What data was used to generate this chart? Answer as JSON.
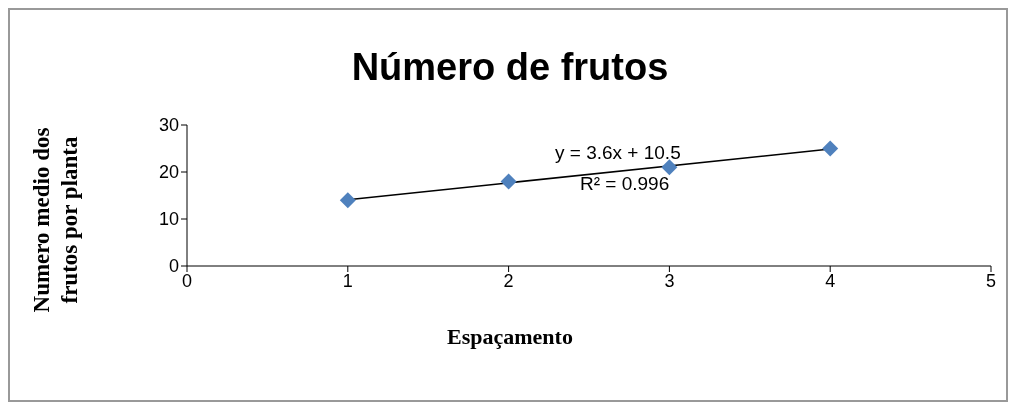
{
  "chart_data": {
    "type": "scatter",
    "title": "Número de frutos",
    "xlabel": "Espaçamento",
    "ylabel": "Numero medio dos frutos por planta",
    "x": [
      1,
      2,
      3,
      4
    ],
    "series": [
      {
        "color": "#4f81bd",
        "values": [
          14,
          18,
          21,
          25
        ],
        "marker": "diamond"
      },
      {
        "type": "line",
        "color": "#000000",
        "x": [
          1,
          4
        ],
        "values": [
          14.1,
          24.9
        ],
        "marker": "none"
      }
    ],
    "annotations": [
      "y = 3.6x + 10.5",
      "R² = 0.996"
    ],
    "xlim": [
      0,
      5
    ],
    "xticks": [
      0,
      1,
      2,
      3,
      4,
      5
    ],
    "ylim": [
      0,
      30
    ],
    "yticks": [
      0,
      10,
      20,
      30
    ],
    "grid": false,
    "legend": false
  }
}
